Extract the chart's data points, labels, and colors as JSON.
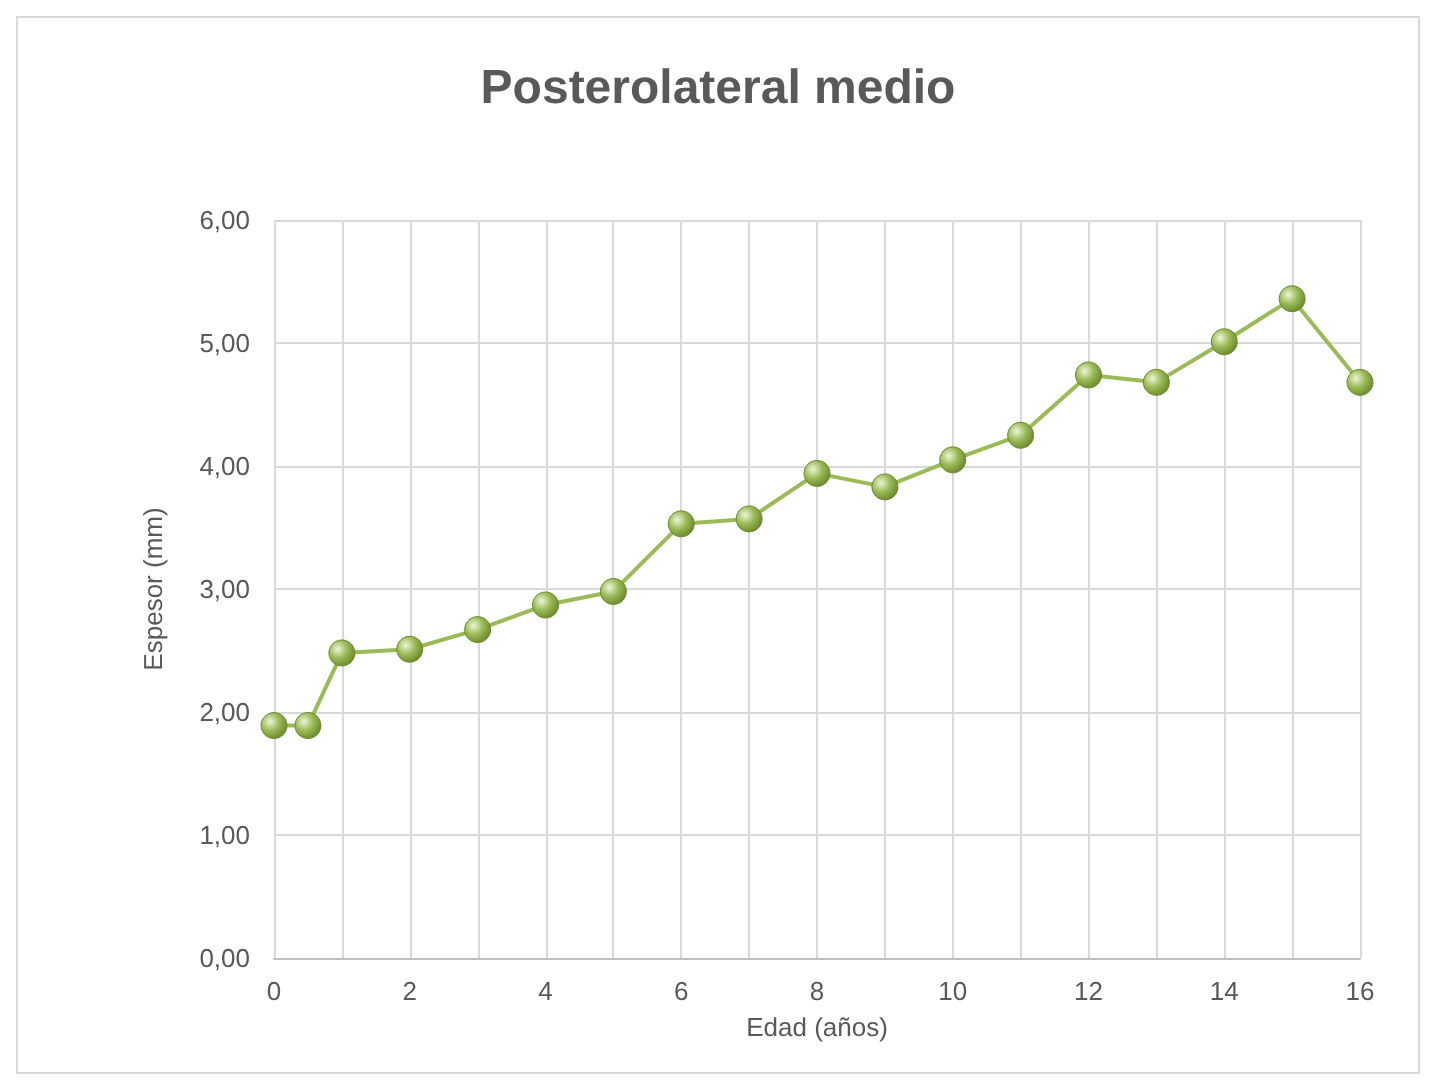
{
  "chart_data": {
    "type": "line",
    "title": "Posterolateral medio",
    "xlabel": "Edad (años)",
    "ylabel": "Espesor (mm)",
    "x": [
      0,
      0.5,
      1,
      2,
      3,
      4,
      5,
      6,
      7,
      8,
      9,
      10,
      11,
      12,
      13,
      14,
      15,
      16
    ],
    "series": [
      {
        "color": "#9bbb59",
        "values": [
          1.89,
          1.89,
          2.48,
          2.51,
          2.67,
          2.87,
          2.98,
          3.53,
          3.57,
          3.94,
          3.83,
          4.05,
          4.25,
          4.74,
          4.68,
          5.01,
          5.36,
          4.68
        ]
      }
    ],
    "xlim": [
      0,
      16
    ],
    "xticks": [
      0,
      {
        "value": 1,
        "label": null
      },
      2,
      {
        "value": 3,
        "label": null
      },
      4,
      {
        "value": 5,
        "label": null
      },
      6,
      {
        "value": 7,
        "label": null
      },
      8,
      {
        "value": 9,
        "label": null
      },
      10,
      {
        "value": 11,
        "label": null
      },
      12,
      {
        "value": 13,
        "label": null
      },
      14,
      {
        "value": 15,
        "label": null
      },
      16
    ],
    "ylim": [
      0,
      6
    ],
    "yticks": [
      {
        "value": 0,
        "label": "0,00"
      },
      {
        "value": 1,
        "label": "1,00"
      },
      {
        "value": 2,
        "label": "2,00"
      },
      {
        "value": 3,
        "label": "3,00"
      },
      {
        "value": 4,
        "label": "4,00"
      },
      {
        "value": 5,
        "label": "5,00"
      },
      {
        "value": 6,
        "label": "6,00"
      }
    ],
    "grid": true,
    "marker": "circle",
    "line_style": "solid"
  }
}
